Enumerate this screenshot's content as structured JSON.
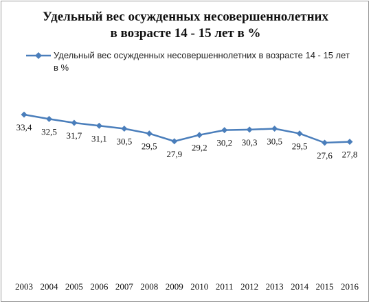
{
  "chart_data": {
    "type": "line",
    "title_lines": [
      "Удельный вес осужденных несовершеннолетних",
      "в возрасте 14 - 15 лет в %"
    ],
    "x": [
      "2003",
      "2004",
      "2005",
      "2006",
      "2007",
      "2008",
      "2009",
      "2010",
      "2011",
      "2012",
      "2013",
      "2014",
      "2015",
      "2016"
    ],
    "series": [
      {
        "name": "Удельный вес осужденных несовершеннолетних в возрасте 14 - 15 лет в %",
        "values": [
          33.4,
          32.5,
          31.7,
          31.1,
          30.5,
          29.5,
          27.9,
          29.2,
          30.2,
          30.3,
          30.5,
          29.5,
          27.6,
          27.8
        ],
        "value_labels": [
          "33,4",
          "32,5",
          "31,7",
          "31,1",
          "30,5",
          "29,5",
          "27,9",
          "29,2",
          "30,2",
          "30,3",
          "30,5",
          "29,5",
          "27,6",
          "27,8"
        ],
        "color": "#4a7ebb"
      }
    ],
    "legend_position": "top",
    "grid": false
  }
}
